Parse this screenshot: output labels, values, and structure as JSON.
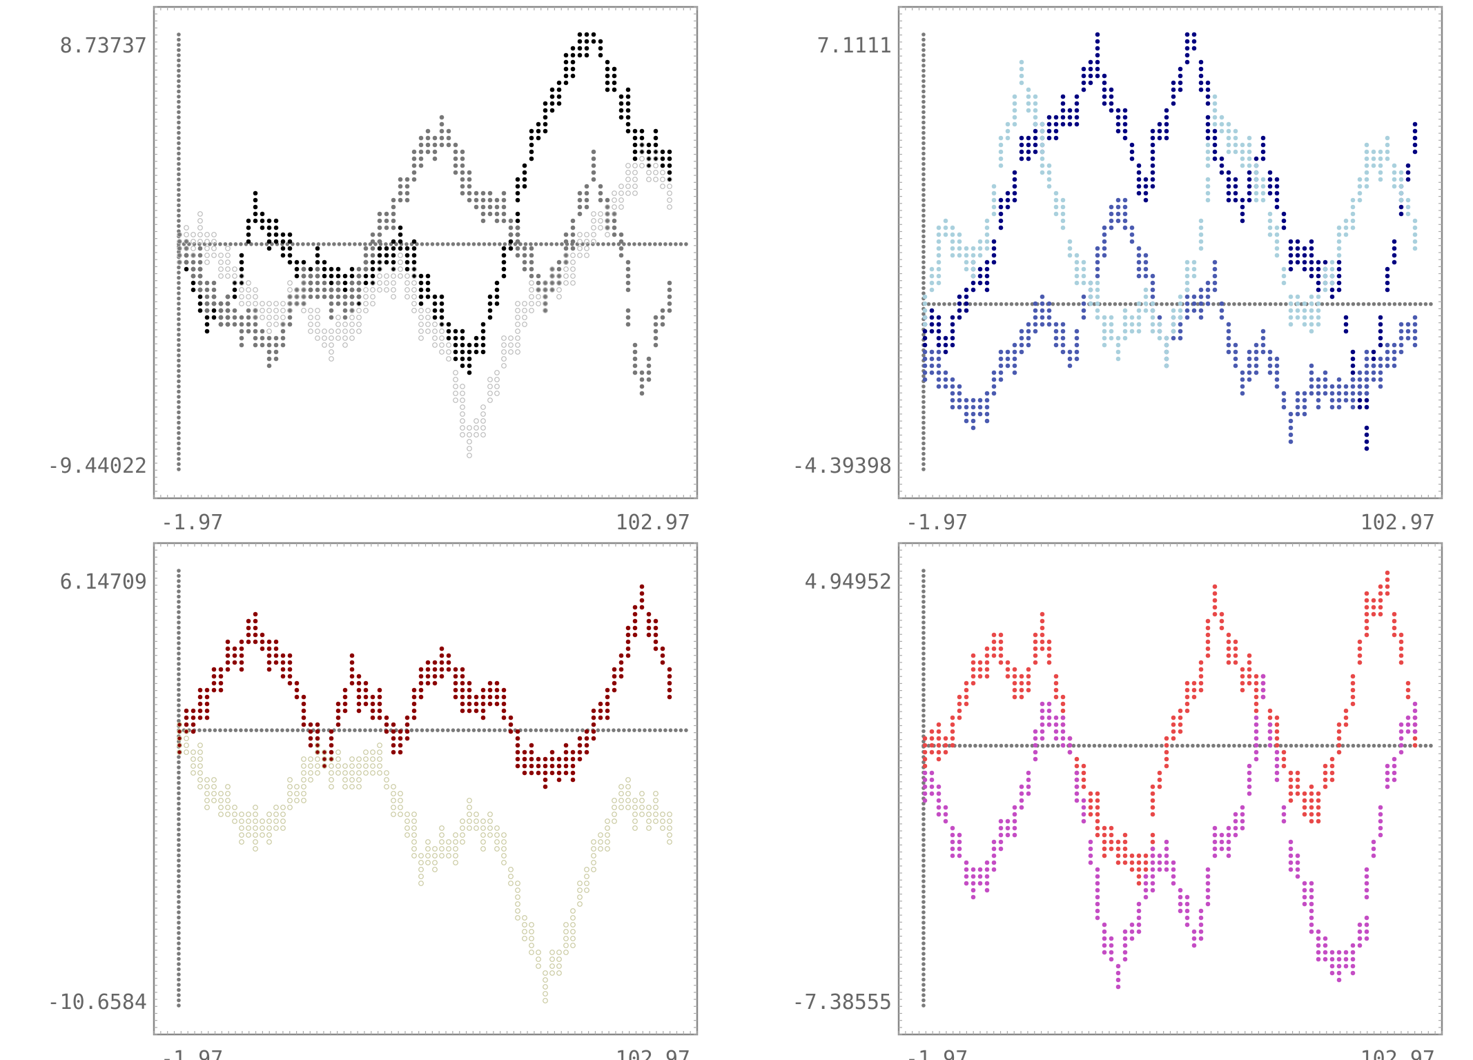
{
  "chart_data": [
    {
      "type": "scatter",
      "title": "",
      "xlabel": "",
      "ylabel": "",
      "x_tick_labels": [
        "-1.97",
        "102.97"
      ],
      "y_tick_labels": [
        "8.73737",
        "-9.44022"
      ],
      "xlim": [
        -1.97,
        102.97
      ],
      "ylim": [
        -9.44022,
        8.73737
      ],
      "grid": false,
      "legend": "none",
      "series": [
        {
          "color": "#000000",
          "marker": "filled",
          "x": [
            0,
            5,
            10,
            15,
            20,
            25,
            30,
            35,
            40,
            45,
            50,
            55,
            60,
            65,
            70,
            75,
            80,
            85,
            90,
            95,
            100
          ],
          "values": [
            0,
            -2.5,
            -3,
            1.5,
            0.5,
            -1.5,
            -1,
            -2,
            -1,
            0,
            -1.5,
            -3.5,
            -5,
            -2,
            2,
            5.5,
            7.5,
            8.7,
            6,
            4,
            3.5
          ]
        },
        {
          "color": "#777777",
          "marker": "filled",
          "x": [
            0,
            5,
            10,
            15,
            20,
            25,
            30,
            35,
            40,
            45,
            50,
            55,
            60,
            65,
            70,
            75,
            80,
            85,
            90,
            95,
            100
          ],
          "values": [
            0,
            -1.5,
            -3,
            -3.5,
            -4.5,
            -1.5,
            -2,
            -2.5,
            0,
            2,
            4,
            4.5,
            2,
            1.5,
            0,
            -2,
            0,
            3,
            0,
            -6,
            -2
          ]
        },
        {
          "color": "#bbbbbb",
          "marker": "hollow",
          "x": [
            0,
            5,
            10,
            15,
            20,
            25,
            30,
            35,
            40,
            45,
            50,
            55,
            60,
            65,
            70,
            75,
            80,
            85,
            90,
            95,
            100
          ],
          "values": [
            0,
            0.5,
            -1,
            -2.5,
            -3,
            -2,
            -4,
            -3.5,
            -2,
            -1,
            -3,
            -4.5,
            -8.5,
            -5.5,
            -3,
            -2,
            -1,
            0.5,
            2,
            3.5,
            2.5
          ]
        }
      ]
    },
    {
      "type": "scatter",
      "title": "",
      "xlabel": "",
      "ylabel": "",
      "x_tick_labels": [
        "-1.97",
        "102.97"
      ],
      "y_tick_labels": [
        "7.1111",
        "-4.39398"
      ],
      "xlim": [
        -1.97,
        102.97
      ],
      "ylim": [
        -4.39398,
        7.1111
      ],
      "grid": false,
      "legend": "none",
      "series": [
        {
          "color": "#000080",
          "marker": "filled",
          "x": [
            0,
            5,
            10,
            15,
            20,
            25,
            30,
            35,
            40,
            45,
            50,
            55,
            60,
            65,
            70,
            75,
            80,
            85,
            90,
            95,
            100
          ],
          "values": [
            -0.5,
            -1,
            0.5,
            1.5,
            4,
            4.5,
            5,
            6.5,
            5,
            3,
            5,
            7,
            4,
            2.5,
            4,
            1.5,
            1,
            0.5,
            -3.5,
            0.5,
            4.5
          ]
        },
        {
          "color": "#4a5ab0",
          "marker": "filled",
          "x": [
            0,
            5,
            10,
            15,
            20,
            25,
            30,
            35,
            40,
            45,
            50,
            55,
            60,
            65,
            70,
            75,
            80,
            85,
            90,
            95,
            100
          ],
          "values": [
            -1.5,
            -2,
            -3,
            -2,
            -1,
            0,
            -1.5,
            1,
            2.5,
            1,
            -1,
            0,
            0.5,
            -2,
            -1,
            -3,
            -2,
            -2.5,
            -2,
            -1.5,
            -0.5
          ]
        },
        {
          "color": "#a9d0dd",
          "marker": "filled",
          "x": [
            0,
            5,
            10,
            15,
            20,
            25,
            30,
            35,
            40,
            45,
            50,
            55,
            60,
            65,
            70,
            75,
            80,
            85,
            90,
            95,
            100
          ],
          "values": [
            0,
            2,
            1,
            3,
            6,
            4,
            1.5,
            0,
            -1,
            0,
            -1,
            1,
            5,
            4,
            3,
            0,
            -0.5,
            1.5,
            3.5,
            4,
            2
          ]
        }
      ]
    },
    {
      "type": "scatter",
      "title": "",
      "xlabel": "",
      "ylabel": "",
      "x_tick_labels": [
        "-1.97",
        "102.97"
      ],
      "y_tick_labels": [
        "6.14709",
        "-10.6584"
      ],
      "xlim": [
        -1.97,
        102.97
      ],
      "ylim": [
        -10.6584,
        6.14709
      ],
      "grid": false,
      "legend": "none",
      "series": [
        {
          "color": "#8b0000",
          "marker": "filled",
          "x": [
            0,
            5,
            10,
            15,
            20,
            25,
            30,
            35,
            40,
            45,
            50,
            55,
            60,
            65,
            70,
            75,
            80,
            85,
            90,
            95,
            100
          ],
          "values": [
            0,
            1,
            2.5,
            4,
            3,
            1,
            -1,
            2,
            1,
            -0.5,
            2,
            2.5,
            1,
            1.5,
            -1,
            -1.5,
            -1.5,
            0,
            2.5,
            5,
            2
          ]
        },
        {
          "color": "#c9c9a0",
          "marker": "hollow",
          "x": [
            0,
            5,
            10,
            15,
            20,
            25,
            30,
            35,
            40,
            45,
            50,
            55,
            60,
            65,
            70,
            75,
            80,
            85,
            90,
            95,
            100
          ],
          "values": [
            0,
            -2,
            -3,
            -4,
            -3.5,
            -2,
            -1,
            -2,
            -1,
            -3,
            -5,
            -4.5,
            -3.5,
            -4,
            -7,
            -9.5,
            -8,
            -5,
            -2.5,
            -3,
            -3.5
          ]
        }
      ]
    },
    {
      "type": "scatter",
      "title": "",
      "xlabel": "",
      "ylabel": "",
      "x_tick_labels": [
        "-1.97",
        "102.97"
      ],
      "y_tick_labels": [
        "4.94952",
        "-7.38555"
      ],
      "xlim": [
        -1.97,
        102.97
      ],
      "ylim": [
        -7.38555,
        4.94952
      ],
      "grid": false,
      "legend": "none",
      "series": [
        {
          "color": "#e84848",
          "marker": "filled",
          "x": [
            0,
            5,
            10,
            15,
            20,
            25,
            30,
            35,
            40,
            45,
            50,
            55,
            60,
            65,
            70,
            75,
            80,
            85,
            90,
            95,
            100
          ],
          "values": [
            0,
            0,
            2,
            3,
            1.5,
            3.5,
            0,
            -2,
            -3,
            -3.5,
            0,
            1.5,
            4,
            2,
            1.5,
            -1,
            -2,
            0,
            3.5,
            4.5,
            0.5
          ]
        },
        {
          "color": "#c44cc4",
          "marker": "filled",
          "x": [
            0,
            5,
            10,
            15,
            20,
            25,
            30,
            35,
            40,
            45,
            50,
            55,
            60,
            65,
            70,
            75,
            80,
            85,
            90,
            95,
            100
          ],
          "values": [
            -1,
            -2,
            -4,
            -3,
            -1.5,
            1,
            0,
            -4,
            -6.5,
            -4,
            -3,
            -5.5,
            -3,
            -2,
            1.5,
            -3,
            -5,
            -6.5,
            -5,
            -1,
            1
          ]
        }
      ]
    }
  ]
}
